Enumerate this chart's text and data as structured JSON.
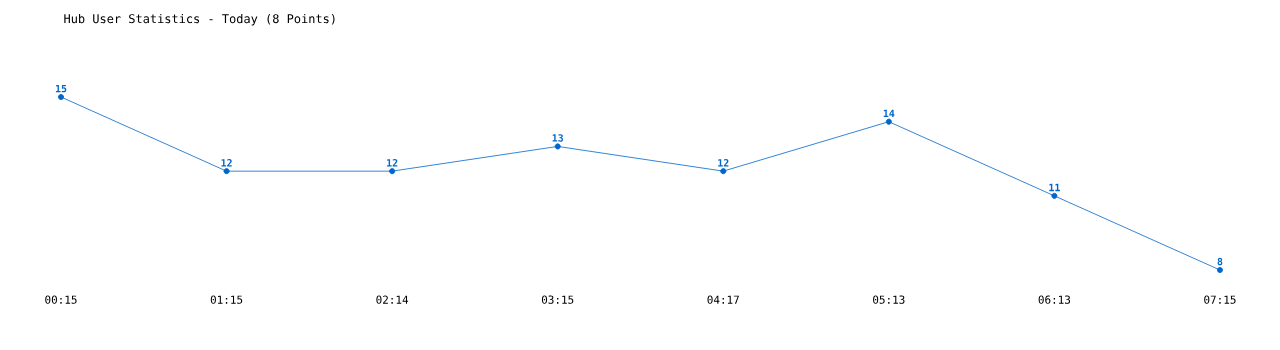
{
  "chart_data": {
    "type": "line",
    "title": "Hub User Statistics - Today (8 Points)",
    "categories": [
      "00:15",
      "01:15",
      "02:14",
      "03:15",
      "04:17",
      "05:13",
      "06:13",
      "07:15"
    ],
    "values": [
      15,
      12,
      12,
      13,
      12,
      14,
      11,
      8
    ],
    "color": "#0066cc",
    "marker": "circle",
    "data_labels": true
  }
}
